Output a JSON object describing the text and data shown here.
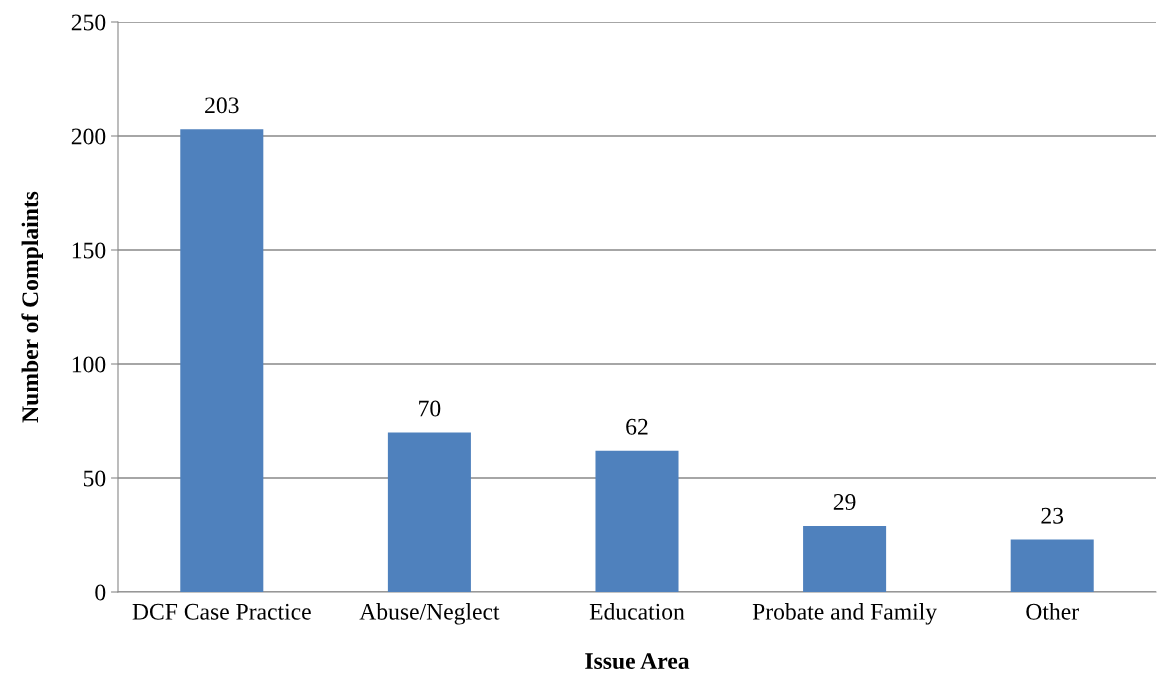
{
  "chart_data": {
    "type": "bar",
    "xlabel": "Issue Area",
    "ylabel": "Number of Complaints",
    "categories": [
      "DCF Case Practice",
      "Abuse/Neglect",
      "Education",
      "Probate and Family",
      "Other"
    ],
    "values": [
      203,
      70,
      62,
      29,
      23
    ],
    "color": "#4f81bd",
    "ylim": [
      0,
      250
    ],
    "yticks": [
      0,
      50,
      100,
      150,
      200,
      250
    ],
    "grid": "y",
    "data_labels": true
  }
}
